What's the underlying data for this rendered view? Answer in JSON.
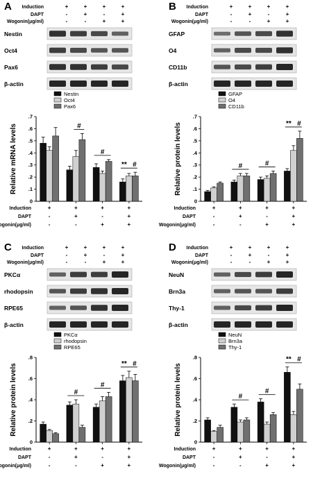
{
  "colors": {
    "s1": "#111111",
    "s2": "#d0d0d0",
    "s3": "#707070",
    "blot_bg": "#e6e6e6",
    "band": "#1a1a1a"
  },
  "condition_row_labels": [
    "Induction",
    "DAPT",
    "Wogonin(μg/ml)"
  ],
  "condition_marks": [
    [
      "+",
      "+",
      "+",
      "+"
    ],
    [
      "-",
      "+",
      "-",
      "+"
    ],
    [
      "-",
      "-",
      "+",
      "+"
    ]
  ],
  "chart_data": [
    {
      "panel": "A",
      "type": "bar",
      "blot_labels": [
        "Nestin",
        "Oct4",
        "Pax6",
        "β-actin"
      ],
      "ylabel": "Relative mRNA levels",
      "ylim": [
        0,
        0.7
      ],
      "yticks": [
        "0",
        ".1",
        ".2",
        ".3",
        ".4",
        ".5",
        ".6",
        ".7"
      ],
      "series": [
        {
          "name": "Nestin",
          "values": [
            0.48,
            0.26,
            0.28,
            0.16
          ],
          "errors": [
            0.05,
            0.03,
            0.03,
            0.025
          ]
        },
        {
          "name": "Oct4",
          "values": [
            0.42,
            0.37,
            0.23,
            0.21
          ],
          "errors": [
            0.03,
            0.05,
            0.02,
            0.02
          ]
        },
        {
          "name": "Pax6",
          "values": [
            0.54,
            0.51,
            0.33,
            0.21
          ],
          "errors": [
            0.07,
            0.05,
            0.015,
            0.03
          ]
        }
      ],
      "annotations": [
        {
          "group": 1,
          "text": "#",
          "from": 1,
          "to": 2
        },
        {
          "group": 2,
          "text": "#",
          "from": 0,
          "to": 2
        },
        {
          "group": 3,
          "text": "**",
          "from": -1,
          "to": -1
        },
        {
          "group": 3,
          "text": "#",
          "from": 0,
          "to": 2
        }
      ]
    },
    {
      "panel": "B",
      "type": "bar",
      "blot_labels": [
        "GFAP",
        "O4",
        "CD11b",
        "β-actin"
      ],
      "ylabel": "Relative protein levels",
      "ylim": [
        0,
        0.7
      ],
      "yticks": [
        "0",
        ".1",
        ".2",
        ".3",
        ".4",
        ".5",
        ".6",
        ".7"
      ],
      "series": [
        {
          "name": "GFAP",
          "values": [
            0.08,
            0.16,
            0.18,
            0.25
          ],
          "errors": [
            0.01,
            0.015,
            0.02,
            0.02
          ]
        },
        {
          "name": "O4",
          "values": [
            0.11,
            0.21,
            0.19,
            0.42
          ],
          "errors": [
            0.01,
            0.02,
            0.02,
            0.04
          ]
        },
        {
          "name": "CD11b",
          "values": [
            0.15,
            0.21,
            0.23,
            0.52
          ],
          "errors": [
            0.01,
            0.02,
            0.02,
            0.06
          ]
        }
      ],
      "annotations": [
        {
          "group": 1,
          "text": "#",
          "from": 0,
          "to": 2
        },
        {
          "group": 2,
          "text": "#",
          "from": 0,
          "to": 2
        },
        {
          "group": 3,
          "text": "**",
          "from": -1,
          "to": -1
        },
        {
          "group": 3,
          "text": "#",
          "from": 0,
          "to": 2
        }
      ]
    },
    {
      "panel": "C",
      "type": "bar",
      "blot_labels": [
        "PKCα",
        "rhodopsin",
        "RPE65",
        "β-actin"
      ],
      "ylabel": "Relative protein levels",
      "ylim": [
        0,
        0.8
      ],
      "yticks": [
        "0",
        ".2",
        ".4",
        ".6",
        ".8"
      ],
      "series": [
        {
          "name": "PKCα",
          "values": [
            0.17,
            0.35,
            0.33,
            0.58
          ],
          "errors": [
            0.02,
            0.03,
            0.03,
            0.05
          ]
        },
        {
          "name": "rhodopsin",
          "values": [
            0.11,
            0.36,
            0.39,
            0.61
          ],
          "errors": [
            0.01,
            0.04,
            0.04,
            0.06
          ]
        },
        {
          "name": "RPE65",
          "values": [
            0.08,
            0.14,
            0.43,
            0.58
          ],
          "errors": [
            0.01,
            0.02,
            0.04,
            0.06
          ]
        }
      ],
      "annotations": [
        {
          "group": 1,
          "text": "#",
          "from": 0,
          "to": 2
        },
        {
          "group": 2,
          "text": "#",
          "from": 0,
          "to": 2
        },
        {
          "group": 3,
          "text": "**",
          "from": -1,
          "to": -1
        },
        {
          "group": 3,
          "text": "#",
          "from": 0,
          "to": 2
        }
      ]
    },
    {
      "panel": "D",
      "type": "bar",
      "blot_labels": [
        "NeuN",
        "Brn3a",
        "Thy-1",
        "β-actin"
      ],
      "ylabel": "Relative protein levels",
      "ylim": [
        0,
        0.8
      ],
      "yticks": [
        "0",
        ".2",
        ".4",
        ".6",
        ".8"
      ],
      "series": [
        {
          "name": "NeuN",
          "values": [
            0.21,
            0.33,
            0.38,
            0.66
          ],
          "errors": [
            0.02,
            0.03,
            0.03,
            0.05
          ]
        },
        {
          "name": "Brn3a",
          "values": [
            0.1,
            0.19,
            0.17,
            0.26
          ],
          "errors": [
            0.01,
            0.02,
            0.02,
            0.03
          ]
        },
        {
          "name": "Thy-1",
          "values": [
            0.14,
            0.21,
            0.26,
            0.5
          ],
          "errors": [
            0.02,
            0.02,
            0.02,
            0.05
          ]
        }
      ],
      "annotations": [
        {
          "group": 1,
          "text": "#",
          "from": 0,
          "to": 2
        },
        {
          "group": 2,
          "text": "#",
          "from": 0,
          "to": 2
        },
        {
          "group": 3,
          "text": "**",
          "from": -1,
          "to": -1
        },
        {
          "group": 3,
          "text": "#",
          "from": 0,
          "to": 2
        }
      ]
    }
  ]
}
